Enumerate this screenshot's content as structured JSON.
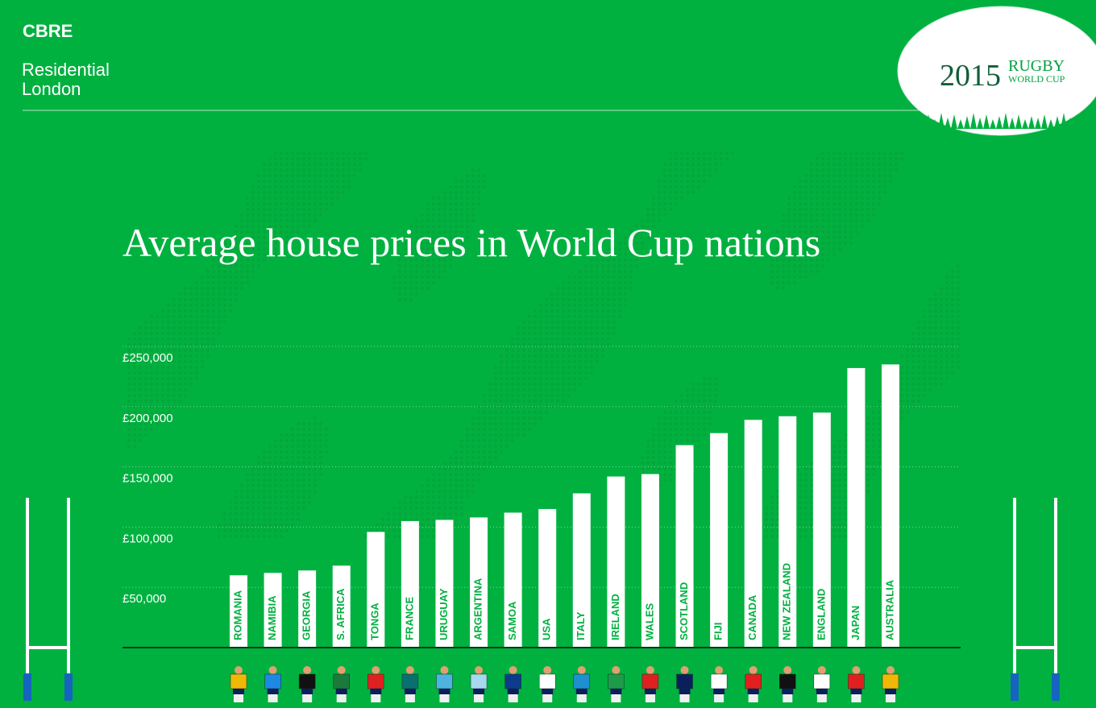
{
  "header": {
    "brand": "CBRE",
    "division": [
      "Residential",
      "London"
    ]
  },
  "logo": {
    "year": "2015",
    "line1": "RUGBY",
    "line2": "WORLD CUP"
  },
  "chart_data": {
    "type": "bar",
    "title": "Average house prices in World Cup nations",
    "categories": [
      "ROMANIA",
      "NAMIBIA",
      "GEORGIA",
      "S. AFRICA",
      "TONGA",
      "FRANCE",
      "URUGUAY",
      "ARGENTINA",
      "SAMOA",
      "USA",
      "ITALY",
      "IRELAND",
      "WALES",
      "SCOTLAND",
      "FIJI",
      "CANADA",
      "NEW ZEALAND",
      "ENGLAND",
      "JAPAN",
      "AUSTRALIA"
    ],
    "values": [
      60000,
      62000,
      64000,
      68000,
      96000,
      105000,
      106000,
      108000,
      112000,
      115000,
      128000,
      142000,
      144000,
      168000,
      178000,
      189000,
      192000,
      195000,
      232000,
      235000
    ],
    "color": "#ffffff",
    "ylim": [
      0,
      250000
    ],
    "yticks": [
      {
        "value": 50000,
        "label": "£50,000"
      },
      {
        "value": 100000,
        "label": "£100,000"
      },
      {
        "value": 150000,
        "label": "£150,000"
      },
      {
        "value": 200000,
        "label": "£200,000"
      },
      {
        "value": 250000,
        "label": "£250,000"
      }
    ],
    "grid": true
  }
}
